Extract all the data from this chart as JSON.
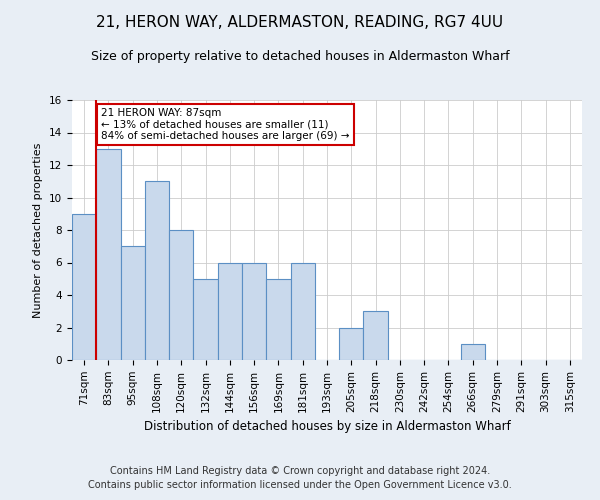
{
  "title": "21, HERON WAY, ALDERMASTON, READING, RG7 4UU",
  "subtitle": "Size of property relative to detached houses in Aldermaston Wharf",
  "xlabel": "Distribution of detached houses by size in Aldermaston Wharf",
  "ylabel": "Number of detached properties",
  "categories": [
    "71sqm",
    "83sqm",
    "95sqm",
    "108sqm",
    "120sqm",
    "132sqm",
    "144sqm",
    "156sqm",
    "169sqm",
    "181sqm",
    "193sqm",
    "205sqm",
    "218sqm",
    "230sqm",
    "242sqm",
    "254sqm",
    "266sqm",
    "279sqm",
    "291sqm",
    "303sqm",
    "315sqm"
  ],
  "values": [
    9,
    13,
    7,
    11,
    8,
    5,
    6,
    6,
    5,
    6,
    0,
    2,
    3,
    0,
    0,
    0,
    1,
    0,
    0,
    0,
    0
  ],
  "bar_color": "#c9d9ec",
  "bar_edge_color": "#5b8fc4",
  "vline_x_index": 1,
  "vline_color": "#cc0000",
  "annotation_text": "21 HERON WAY: 87sqm\n← 13% of detached houses are smaller (11)\n84% of semi-detached houses are larger (69) →",
  "annotation_box_color": "#ffffff",
  "annotation_box_edge_color": "#cc0000",
  "ylim": [
    0,
    16
  ],
  "yticks": [
    0,
    2,
    4,
    6,
    8,
    10,
    12,
    14,
    16
  ],
  "footer": "Contains HM Land Registry data © Crown copyright and database right 2024.\nContains public sector information licensed under the Open Government Licence v3.0.",
  "background_color": "#e8eef5",
  "plot_background_color": "#ffffff",
  "title_fontsize": 11,
  "subtitle_fontsize": 9,
  "footer_fontsize": 7,
  "annotation_fontsize": 7.5,
  "ylabel_fontsize": 8,
  "xlabel_fontsize": 8.5,
  "tick_fontsize": 7.5
}
